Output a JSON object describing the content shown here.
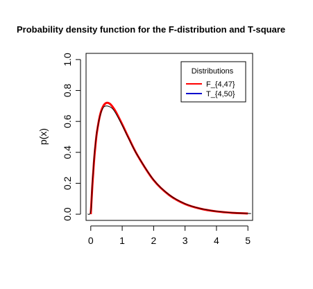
{
  "chart_data": {
    "type": "line",
    "title": "Probability density function for the F-distribution and T-square",
    "xlabel": "",
    "ylabel": "p(x)",
    "xlim": [
      -0.15,
      5.15
    ],
    "ylim": [
      -0.04,
      1.04
    ],
    "xticks": [
      "0",
      "1",
      "2",
      "3",
      "4",
      "5"
    ],
    "yticks": [
      "0.0",
      "0.2",
      "0.4",
      "0.6",
      "0.8",
      "1.0"
    ],
    "grid": false,
    "legend": {
      "title": "Distributions",
      "position": "top-right"
    },
    "series": [
      {
        "name": "F_{4,47}",
        "color": "#ff0000",
        "x": [
          0.0,
          0.05,
          0.1,
          0.15,
          0.2,
          0.3,
          0.4,
          0.5,
          0.6,
          0.7,
          0.8,
          1.0,
          1.2,
          1.5,
          2.0,
          2.5,
          3.0,
          3.5,
          4.0,
          4.5,
          5.0
        ],
        "y": [
          0.0,
          0.183,
          0.334,
          0.448,
          0.535,
          0.645,
          0.7,
          0.72,
          0.715,
          0.693,
          0.661,
          0.581,
          0.496,
          0.376,
          0.22,
          0.123,
          0.066,
          0.035,
          0.018,
          0.009,
          0.005
        ]
      },
      {
        "name": "T_{4,50}",
        "color": "#0000cd",
        "x": [
          -0.1,
          0.0,
          0.05,
          0.1,
          0.15,
          0.2,
          0.3,
          0.4,
          0.5,
          0.6,
          0.7,
          0.8,
          1.0,
          1.2,
          1.5,
          2.0,
          2.5,
          3.0,
          3.5,
          4.0,
          4.5,
          5.0,
          5.1
        ],
        "y": [
          0.0,
          0.02,
          0.2,
          0.35,
          0.46,
          0.54,
          0.64,
          0.69,
          0.7,
          0.695,
          0.68,
          0.65,
          0.575,
          0.492,
          0.376,
          0.222,
          0.125,
          0.068,
          0.036,
          0.019,
          0.01,
          0.005,
          0.004
        ]
      }
    ]
  }
}
